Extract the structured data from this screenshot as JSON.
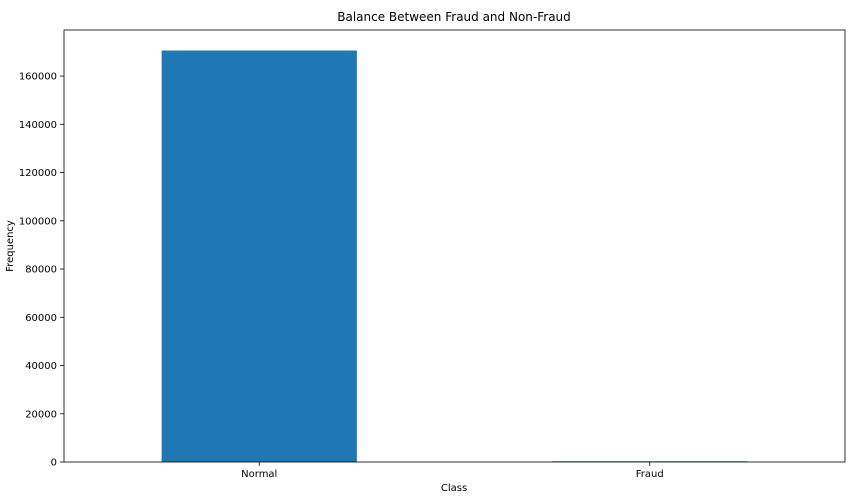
{
  "chart_data": {
    "type": "bar",
    "title": "Balance Between Fraud and Non-Fraud",
    "xlabel": "Class",
    "ylabel": "Frequency",
    "categories": [
      "Normal",
      "Fraud"
    ],
    "values": [
      170589,
      295
    ],
    "ylim": [
      0,
      179100
    ],
    "yticks": [
      0,
      20000,
      40000,
      60000,
      80000,
      100000,
      120000,
      140000,
      160000
    ],
    "ytick_labels": [
      "0",
      "20000",
      "40000",
      "60000",
      "80000",
      "100000",
      "120000",
      "140000",
      "160000"
    ],
    "grid": false,
    "legend": null,
    "colors": {
      "bar": "#1f77b4",
      "axis": "#000000"
    }
  }
}
